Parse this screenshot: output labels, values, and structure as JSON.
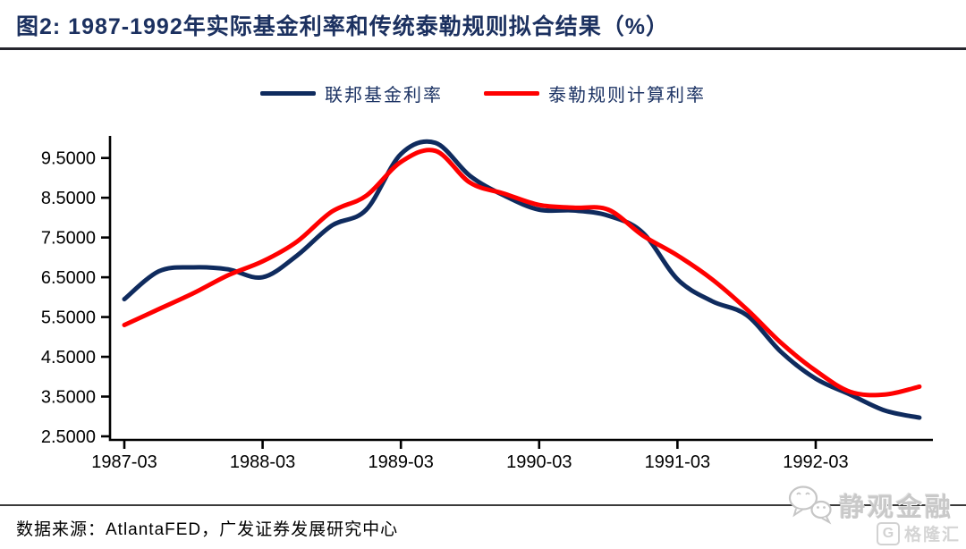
{
  "header": {
    "title": "图2:  1987-1992年实际基金利率和传统泰勒规则拟合结果（%）"
  },
  "chart_data": {
    "type": "line",
    "title": "1987-1992年实际基金利率和传统泰勒规则拟合结果（%）",
    "xlabel": "",
    "ylabel": "",
    "grid": false,
    "legend_position": "top-center",
    "x_axis": {
      "tick_labels": [
        "1987-03",
        "1988-03",
        "1989-03",
        "1990-03",
        "1991-03",
        "1992-03"
      ],
      "tick_months": [
        0,
        12,
        24,
        36,
        48,
        60
      ]
    },
    "y_axis": {
      "tick_labels": [
        "9.5000",
        "8.5000",
        "7.5000",
        "6.5000",
        "5.5000",
        "4.5000",
        "3.5000",
        "2.5000"
      ],
      "tick_values": [
        9.5,
        8.5,
        7.5,
        6.5,
        5.5,
        4.5,
        3.5,
        2.5
      ],
      "range": [
        2.4,
        10.05
      ]
    },
    "categories": [
      "1987-03",
      "1987-06",
      "1987-09",
      "1987-12",
      "1988-03",
      "1988-06",
      "1988-09",
      "1988-12",
      "1989-03",
      "1989-06",
      "1989-09",
      "1989-12",
      "1990-03",
      "1990-06",
      "1990-09",
      "1990-12",
      "1991-03",
      "1991-06",
      "1991-09",
      "1991-12",
      "1992-03",
      "1992-06",
      "1992-09",
      "1992-12"
    ],
    "series": [
      {
        "id": "fed-funds-rate-line",
        "name": "联邦基金利率",
        "color": "#0f2b5e",
        "values": [
          5.95,
          6.65,
          6.75,
          6.7,
          6.5,
          7.05,
          7.8,
          8.2,
          9.6,
          9.88,
          9.05,
          8.55,
          8.2,
          8.18,
          8.05,
          7.62,
          6.45,
          5.9,
          5.55,
          4.62,
          3.95,
          3.55,
          3.15,
          2.97
        ]
      },
      {
        "id": "taylor-rule-line",
        "name": "泰勒规则计算利率",
        "color": "#ff0000",
        "values": [
          5.3,
          5.7,
          6.1,
          6.55,
          6.9,
          7.4,
          8.15,
          8.55,
          9.4,
          9.68,
          8.88,
          8.6,
          8.32,
          8.25,
          8.2,
          7.55,
          7.05,
          6.45,
          5.7,
          4.85,
          4.15,
          3.62,
          3.55,
          3.75
        ]
      }
    ]
  },
  "footer": {
    "source": "数据来源：AtlantaFED，广发证券发展研究中心"
  },
  "watermark": {
    "brand": "静观金融",
    "logo_text": "格隆汇",
    "logo_letter": "G"
  }
}
